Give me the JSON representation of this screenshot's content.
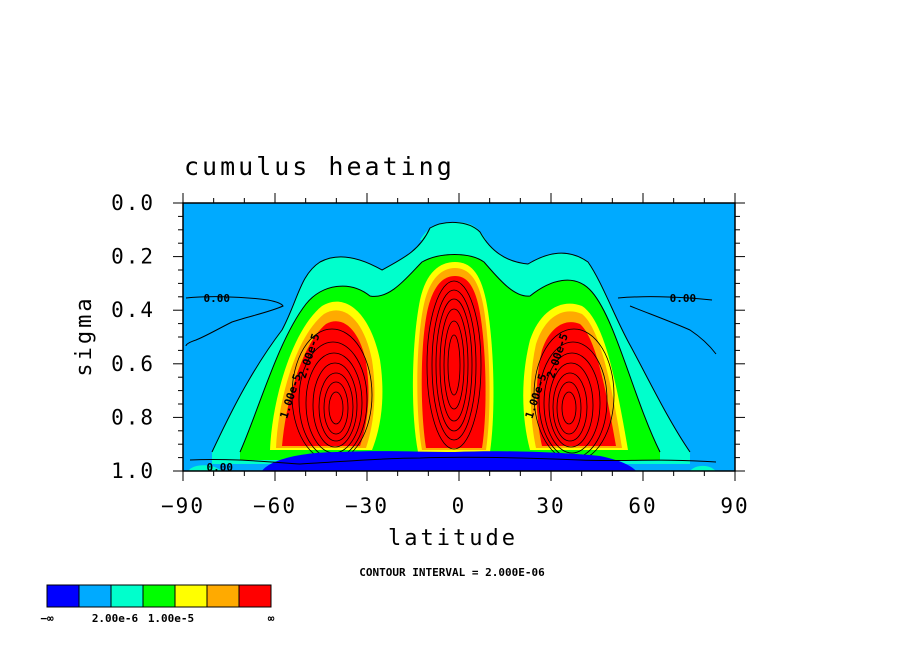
{
  "chart_data": {
    "type": "heatmap",
    "title": "cumulus heating",
    "xlabel": "latitude",
    "ylabel": "sigma",
    "x_ticks": [
      -90,
      -60,
      -30,
      0,
      30,
      60,
      90
    ],
    "x_tick_labels": [
      "−90",
      "−60",
      "−30",
      "0",
      "30",
      "60",
      "90"
    ],
    "xlim": [
      -90,
      90
    ],
    "y_ticks": [
      0.0,
      0.2,
      0.4,
      0.6,
      0.8,
      1.0
    ],
    "y_tick_labels": [
      "0.0",
      "0.2",
      "0.4",
      "0.6",
      "0.8",
      "1.0"
    ],
    "ylim": [
      0.0,
      1.0
    ],
    "y_inverted": true,
    "grid": false,
    "contour_interval_text": "CONTOUR INTERVAL = 2.000E-06",
    "contour_labels": [
      {
        "text": "0.00",
        "x": -79,
        "y": 0.355
      },
      {
        "text": "0.00",
        "x": 73,
        "y": 0.355
      },
      {
        "text": "0.00",
        "x": -78,
        "y": 0.985
      },
      {
        "text": "1.00e-5",
        "x": -55,
        "y": 0.72
      },
      {
        "text": "2.00e-5",
        "x": -49,
        "y": 0.57
      },
      {
        "text": "1.00e-5",
        "x": 25,
        "y": 0.72
      },
      {
        "text": "2.00e-5",
        "x": 32,
        "y": 0.57
      }
    ],
    "features": [
      {
        "name": "equatorial maximum",
        "lat": 0,
        "sigma": 0.55,
        "level": "above 1.00e-5"
      },
      {
        "name": "southern maximum",
        "lat": -40,
        "sigma": 0.75,
        "level": "above 1.00e-5"
      },
      {
        "name": "northern maximum",
        "lat": 40,
        "sigma": 0.75,
        "level": "above 1.00e-5"
      },
      {
        "name": "near-surface negative band",
        "lat_range": [
          -60,
          65
        ],
        "sigma_range": [
          0.93,
          1.0
        ],
        "level": "below 0.00"
      }
    ],
    "colorbar": {
      "colors": [
        "#0000ff",
        "#00aaff",
        "#00ffcc",
        "#00ff00",
        "#ffff00",
        "#ffaa00",
        "#ff0000"
      ],
      "labels": [
        "−∞",
        "2.00e-6",
        "1.00e-5",
        "∞"
      ]
    }
  }
}
